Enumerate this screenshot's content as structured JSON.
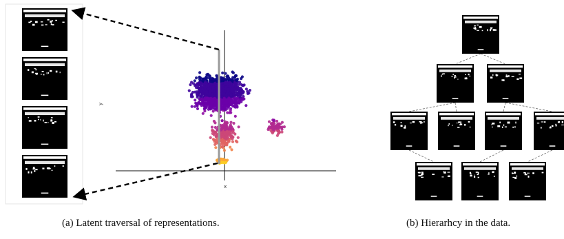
{
  "panel_a": {
    "caption": "(a) Latent traversal of representations.",
    "x_axis_label": "x",
    "y_axis_label": "y",
    "traversal_thumbnails": 4,
    "colormap": [
      "#0d0887",
      "#3e049c",
      "#6a00a8",
      "#900da4",
      "#b12a90",
      "#cc4778",
      "#e16462",
      "#f2844b",
      "#fca636",
      "#fcce25"
    ]
  },
  "panel_b": {
    "caption": "(b) Hierarhcy in the data.",
    "tree_levels": [
      1,
      2,
      4,
      3
    ]
  }
}
